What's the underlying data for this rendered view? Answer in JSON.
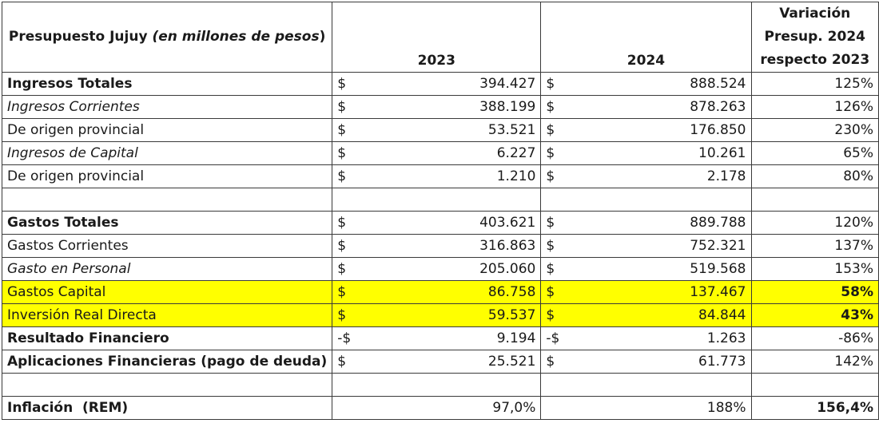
{
  "header": {
    "title": "Presupuesto Jujuy",
    "title_italic": "(en millones de pesos",
    "title_close": ")",
    "col_2023": "2023",
    "col_2024": "2024",
    "variation_line1": "Variación",
    "variation_line2": "Presup. 2024",
    "variation_line3": "respecto 2023"
  },
  "rows": [
    {
      "label": "Ingresos Totales",
      "sym2023": "$",
      "v2023": "394.427",
      "sym2024": "$",
      "v2024": "888.524",
      "var": "125%"
    },
    {
      "label": "Ingresos Corrientes",
      "sym2023": "$",
      "v2023": "388.199",
      "sym2024": "$",
      "v2024": "878.263",
      "var": "126%"
    },
    {
      "label": "De origen provincial",
      "sym2023": "$",
      "v2023": "53.521",
      "sym2024": "$",
      "v2024": "176.850",
      "var": "230%"
    },
    {
      "label": "Ingresos de Capital",
      "sym2023": "$",
      "v2023": "6.227",
      "sym2024": "$",
      "v2024": "10.261",
      "var": "65%"
    },
    {
      "label": "De origen provincial",
      "sym2023": "$",
      "v2023": "1.210",
      "sym2024": "$",
      "v2024": "2.178",
      "var": "80%"
    },
    {
      "label": "Gastos Totales",
      "sym2023": "$",
      "v2023": "403.621",
      "sym2024": "$",
      "v2024": "889.788",
      "var": "120%"
    },
    {
      "label": "Gastos Corrientes",
      "sym2023": "$",
      "v2023": "316.863",
      "sym2024": "$",
      "v2024": "752.321",
      "var": "137%"
    },
    {
      "label": "Gasto en Personal",
      "sym2023": "$",
      "v2023": "205.060",
      "sym2024": "$",
      "v2024": "519.568",
      "var": "153%"
    },
    {
      "label": "Gastos Capital",
      "sym2023": "$",
      "v2023": "86.758",
      "sym2024": "$",
      "v2024": "137.467",
      "var": "58%"
    },
    {
      "label": "Inversión Real Directa",
      "sym2023": "$",
      "v2023": "59.537",
      "sym2024": "$",
      "v2024": "84.844",
      "var": "43%"
    },
    {
      "label": "Resultado Financiero",
      "sym2023": "-$",
      "v2023": "9.194",
      "sym2024": "-$",
      "v2024": "1.263",
      "var": "-86%"
    },
    {
      "label": "Aplicaciones Financieras (pago de deuda)",
      "sym2023": "$",
      "v2023": "25.521",
      "sym2024": "$",
      "v2024": "61.773",
      "var": "142%"
    }
  ],
  "inflation": {
    "label": "Inflación  (REM)",
    "v2023": "97,0%",
    "v2024": "188%",
    "var": "156,4%"
  },
  "colors": {
    "highlight": "#ffff00",
    "border": "#3a3a3a"
  }
}
